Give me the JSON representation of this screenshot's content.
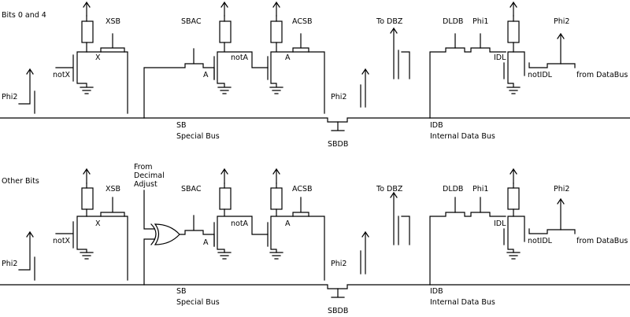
{
  "sections": [
    {
      "heading": "Bits 0 and 4",
      "xsb": "XSB",
      "x": "X",
      "notx": "notX",
      "phi2_left": "Phi2",
      "sbac": "SBAC",
      "nota": "notA",
      "a_gate": "A",
      "a_node": "A",
      "acsb": "ACSB",
      "phi2_mid": "Phi2",
      "to_dbz": "To DBZ",
      "dldb": "DLDB",
      "phi1": "Phi1",
      "idl": "IDL",
      "notidl": "notIDL",
      "phi2_right": "Phi2",
      "from_databus": "from DataBus",
      "sb": "SB",
      "special_bus": "Special Bus",
      "sbdb": "SBDB",
      "idb": "IDB",
      "internal_data_bus": "Internal Data Bus",
      "decimal_adjust": []
    },
    {
      "heading": "Other Bits",
      "xsb": "XSB",
      "x": "X",
      "notx": "notX",
      "phi2_left": "Phi2",
      "sbac": "SBAC",
      "nota": "notA",
      "a_gate": "A",
      "a_node": "A",
      "acsb": "ACSB",
      "phi2_mid": "Phi2",
      "to_dbz": "To DBZ",
      "dldb": "DLDB",
      "phi1": "Phi1",
      "idl": "IDL",
      "notidl": "notIDL",
      "phi2_right": "Phi2",
      "from_databus": "from DataBus",
      "sb": "SB",
      "special_bus": "Special Bus",
      "sbdb": "SBDB",
      "idb": "IDB",
      "internal_data_bus": "Internal Data Bus",
      "decimal_adjust": [
        "From",
        "Decimal",
        "Adjust"
      ]
    }
  ],
  "icons": [
    "vdd-arrow-icon",
    "pullup-resistor-icon",
    "nmos-transistor-icon",
    "ground-icon",
    "xor-gate-icon"
  ]
}
